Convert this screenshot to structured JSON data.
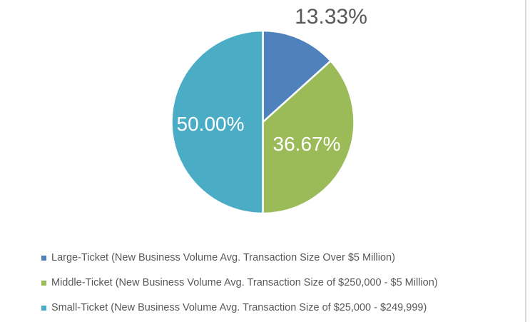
{
  "chart_data": {
    "type": "pie",
    "title": "",
    "unit": "%",
    "start_angle_deg": 0,
    "direction": "clockwise",
    "slice_border_color": "#FFFFFF",
    "legend_position": "bottom-left",
    "legend_text_color": "#595959",
    "data_label_colors": {
      "inside": "#FFFFFF",
      "outside": "#595959"
    },
    "slices": [
      {
        "name": "large-ticket",
        "legend_label": "Large-Ticket (New Business Volume Avg. Transaction Size Over $5 Million)",
        "value": 13.33,
        "display_label": "13.33%",
        "color": "#4F81BD",
        "label_placement": "outside"
      },
      {
        "name": "middle-ticket",
        "legend_label": "Middle-Ticket (New Business Volume Avg. Transaction Size of $250,000 - $5 Million)",
        "value": 36.67,
        "display_label": "36.67%",
        "color": "#9BBB59",
        "label_placement": "inside"
      },
      {
        "name": "small-ticket",
        "legend_label": "Small-Ticket (New Business Volume Avg. Transaction Size of $25,000 - $249,999)",
        "value": 50.0,
        "display_label": "50.00%",
        "color": "#4BACC6",
        "label_placement": "inside"
      }
    ]
  }
}
